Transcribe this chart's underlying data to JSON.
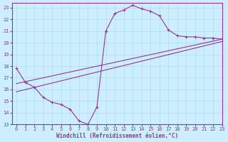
{
  "xlabel": "Windchill (Refroidissement éolien,°C)",
  "bg_color": "#cceeff",
  "line_color": "#993399",
  "grid_color": "#aaddee",
  "xlim": [
    -0.5,
    23
  ],
  "ylim": [
    13,
    23.4
  ],
  "xticks": [
    0,
    1,
    2,
    3,
    4,
    5,
    6,
    7,
    8,
    9,
    10,
    11,
    12,
    13,
    14,
    15,
    16,
    17,
    18,
    19,
    20,
    21,
    22,
    23
  ],
  "yticks": [
    13,
    14,
    15,
    16,
    17,
    18,
    19,
    20,
    21,
    22,
    23
  ],
  "line1_x": [
    0,
    1,
    2,
    3,
    4,
    5,
    6,
    7,
    8,
    9,
    10,
    11,
    12,
    13,
    14,
    15,
    16,
    17,
    18,
    19,
    20,
    21,
    22,
    23
  ],
  "line1_y": [
    17.8,
    16.6,
    16.2,
    15.3,
    14.9,
    14.7,
    14.3,
    13.3,
    13.0,
    14.5,
    21.0,
    22.5,
    22.8,
    23.2,
    22.9,
    22.7,
    22.3,
    21.1,
    20.6,
    20.5,
    20.5,
    20.4,
    20.4,
    20.3
  ],
  "line2_x": [
    0,
    23
  ],
  "line2_y": [
    16.5,
    20.3
  ],
  "line3_x": [
    0,
    23
  ],
  "line3_y": [
    15.8,
    20.1
  ]
}
